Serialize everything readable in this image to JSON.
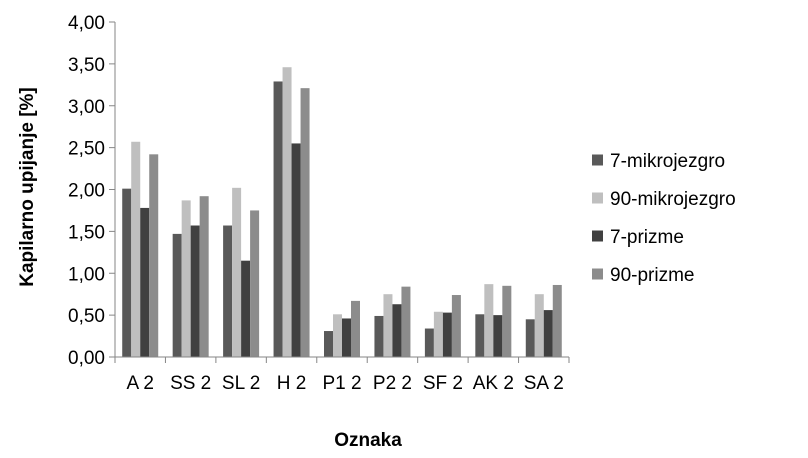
{
  "chart_data": {
    "type": "bar",
    "xlabel": "Oznaka",
    "ylabel": "Kapilarno upijanje [%]",
    "ylim": [
      0,
      4
    ],
    "y_ticks": [
      "0,00",
      "0,50",
      "1,00",
      "1,50",
      "2,00",
      "2,50",
      "3,00",
      "3,50",
      "4,00"
    ],
    "grid": false,
    "legend_position": "right",
    "categories": [
      "A  2",
      "SS 2",
      "SL  2",
      "H  2",
      "P1  2",
      "P2  2",
      "SF  2",
      "AK  2",
      "SA  2"
    ],
    "series": [
      {
        "name": "7-mikrojezgro",
        "color": "#595959",
        "values": [
          2.01,
          1.47,
          1.57,
          3.29,
          0.31,
          0.49,
          0.34,
          0.51,
          0.45
        ]
      },
      {
        "name": "90-mikrojezgro",
        "color": "#bfbfbf",
        "values": [
          2.57,
          1.87,
          2.02,
          3.46,
          0.51,
          0.75,
          0.54,
          0.87,
          0.75
        ]
      },
      {
        "name": "7-prizme",
        "color": "#404040",
        "values": [
          1.78,
          1.57,
          1.15,
          2.55,
          0.46,
          0.63,
          0.53,
          0.5,
          0.56
        ]
      },
      {
        "name": "90-prizme",
        "color": "#8c8c8c",
        "values": [
          2.42,
          1.92,
          1.75,
          3.21,
          0.67,
          0.84,
          0.74,
          0.85,
          0.86
        ]
      }
    ]
  }
}
